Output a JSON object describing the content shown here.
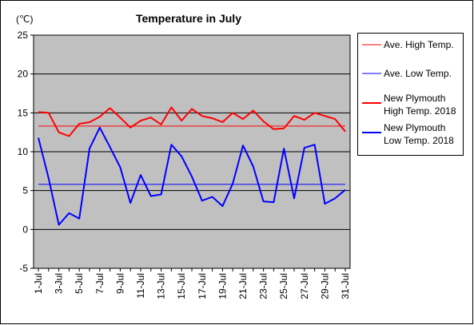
{
  "chart_data": {
    "type": "line",
    "title": "Temperature in July",
    "unit_label": "(℃)",
    "xlabel": "",
    "ylabel": "",
    "ylim": [
      -5,
      25
    ],
    "y_ticks": [
      25,
      20,
      15,
      10,
      5,
      0,
      -5
    ],
    "grid": "horizontal",
    "legend": "right",
    "plot_background": "#c0c0c0",
    "days": [
      1,
      2,
      3,
      4,
      5,
      6,
      7,
      8,
      9,
      10,
      11,
      12,
      13,
      14,
      15,
      16,
      17,
      18,
      19,
      20,
      21,
      22,
      23,
      24,
      25,
      26,
      27,
      28,
      29,
      30,
      31
    ],
    "x_tick_labels": [
      "1-Jul",
      "3-Jul",
      "5-Jul",
      "7-Jul",
      "9-Jul",
      "11-Jul",
      "13-Jul",
      "15-Jul",
      "17-Jul",
      "19-Jul",
      "21-Jul",
      "23-Jul",
      "25-Jul",
      "27-Jul",
      "29-Jul",
      "31-Jul"
    ],
    "series": [
      {
        "name": "Ave. High Temp.",
        "color": "#ff0000",
        "width": 1,
        "constant": 13.3
      },
      {
        "name": "Ave. Low Temp.",
        "color": "#0000ff",
        "width": 1,
        "constant": 5.8
      },
      {
        "name": "New Plymouth High Temp. 2018",
        "legend_lines": [
          "New Plymouth",
          "High Temp. 2018"
        ],
        "color": "#ff0000",
        "width": 2,
        "values": [
          15.1,
          15.0,
          12.5,
          12.0,
          13.6,
          13.8,
          14.5,
          15.6,
          14.4,
          13.1,
          14.0,
          14.4,
          13.5,
          15.7,
          14.0,
          15.5,
          14.6,
          14.3,
          13.8,
          15.0,
          14.2,
          15.3,
          13.9,
          12.9,
          13.0,
          14.6,
          14.1,
          15.0,
          14.6,
          14.2,
          12.6
        ]
      },
      {
        "name": "New Plymouth Low Temp. 2018",
        "legend_lines": [
          "New Plymouth",
          "Low Temp. 2018"
        ],
        "color": "#0000ff",
        "width": 2,
        "values": [
          11.8,
          6.6,
          0.6,
          2.1,
          1.4,
          10.4,
          13.1,
          10.6,
          8.0,
          3.4,
          7.0,
          4.3,
          4.5,
          10.9,
          9.4,
          6.8,
          3.7,
          4.2,
          3.0,
          5.9,
          10.8,
          8.1,
          3.6,
          3.5,
          10.4,
          4.0,
          10.5,
          10.9,
          3.3,
          4.0,
          5.1
        ]
      }
    ]
  }
}
